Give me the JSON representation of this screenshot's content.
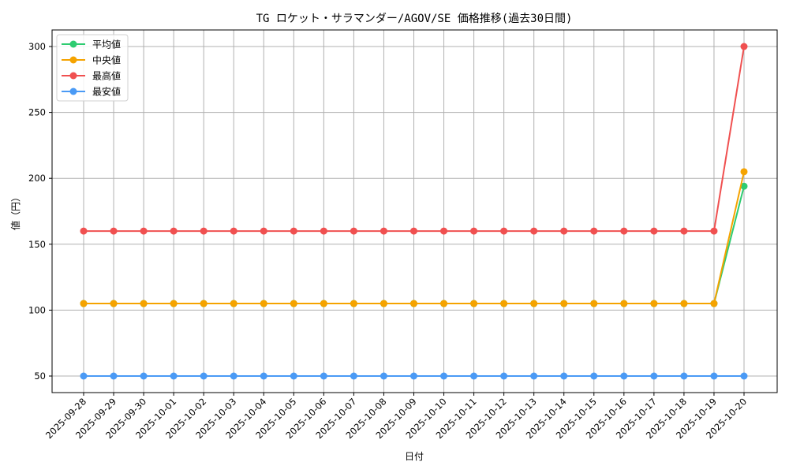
{
  "chart_data": {
    "type": "line",
    "title": "TG ロケット・サラマンダー/AGOV/SE 価格推移(過去30日間)",
    "xlabel": "日付",
    "ylabel": "値（円）",
    "ylim": [
      37.5,
      312.5
    ],
    "yticks": [
      50,
      100,
      150,
      200,
      250,
      300
    ],
    "grid": true,
    "legend_position": "upper left",
    "x": [
      "2025-09-28",
      "2025-09-29",
      "2025-09-30",
      "2025-10-01",
      "2025-10-02",
      "2025-10-03",
      "2025-10-04",
      "2025-10-05",
      "2025-10-06",
      "2025-10-07",
      "2025-10-08",
      "2025-10-09",
      "2025-10-10",
      "2025-10-11",
      "2025-10-12",
      "2025-10-13",
      "2025-10-14",
      "2025-10-15",
      "2025-10-16",
      "2025-10-17",
      "2025-10-18",
      "2025-10-19",
      "2025-10-20"
    ],
    "series": [
      {
        "name": "平均値",
        "color": "#2ecc71",
        "values": [
          105,
          105,
          105,
          105,
          105,
          105,
          105,
          105,
          105,
          105,
          105,
          105,
          105,
          105,
          105,
          105,
          105,
          105,
          105,
          105,
          105,
          105,
          194
        ]
      },
      {
        "name": "中央値",
        "color": "#f5a300",
        "values": [
          105,
          105,
          105,
          105,
          105,
          105,
          105,
          105,
          105,
          105,
          105,
          105,
          105,
          105,
          105,
          105,
          105,
          105,
          105,
          105,
          105,
          105,
          205
        ]
      },
      {
        "name": "最高値",
        "color": "#f05050",
        "values": [
          160,
          160,
          160,
          160,
          160,
          160,
          160,
          160,
          160,
          160,
          160,
          160,
          160,
          160,
          160,
          160,
          160,
          160,
          160,
          160,
          160,
          160,
          300
        ]
      },
      {
        "name": "最安値",
        "color": "#4a9af5",
        "values": [
          50,
          50,
          50,
          50,
          50,
          50,
          50,
          50,
          50,
          50,
          50,
          50,
          50,
          50,
          50,
          50,
          50,
          50,
          50,
          50,
          50,
          50,
          50
        ]
      }
    ]
  }
}
